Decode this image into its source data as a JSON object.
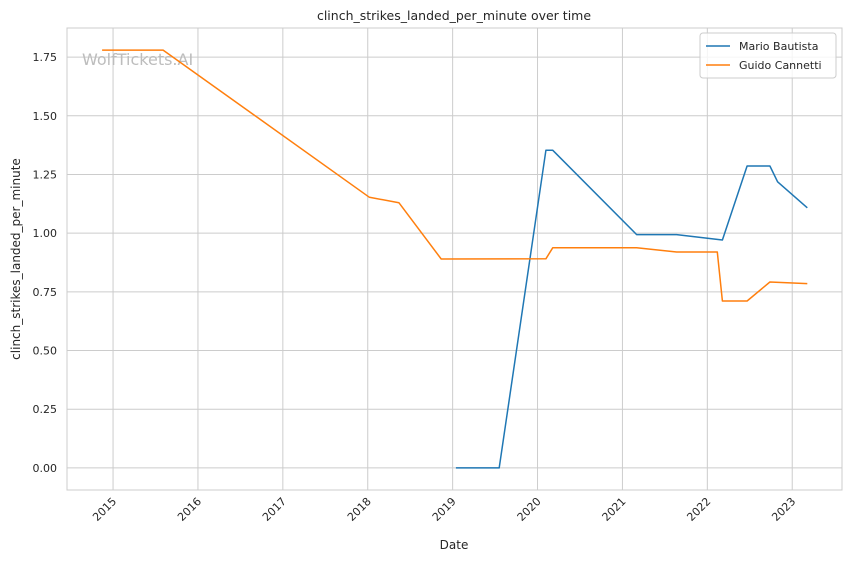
{
  "chart_data": {
    "type": "line",
    "title": "clinch_strikes_landed_per_minute over time",
    "xlabel": "Date",
    "ylabel": "clinch_strikes_landed_per_minute",
    "xlim": [
      "2014-06-17",
      "2023-08-03"
    ],
    "ylim": [
      -0.094,
      1.874
    ],
    "x_ticks": [
      "2015",
      "2016",
      "2017",
      "2018",
      "2019",
      "2020",
      "2021",
      "2022",
      "2023"
    ],
    "y_ticks": [
      "0.00",
      "0.25",
      "0.50",
      "0.75",
      "1.00",
      "1.25",
      "1.50",
      "1.75"
    ],
    "grid": true,
    "legend": "top-right",
    "watermark": "WolfTickets.AI",
    "series": [
      {
        "name": "Mario Bautista",
        "color": "#1f77b4",
        "x": [
          "2019-01-15",
          "2019-07-20",
          "2020-02-06",
          "2020-03-07",
          "2021-03-03",
          "2021-08-22",
          "2022-03-07",
          "2022-06-21",
          "2022-09-27",
          "2022-10-30",
          "2023-03-07"
        ],
        "y": [
          0.0,
          0.0,
          1.353,
          1.353,
          0.994,
          0.994,
          0.971,
          1.286,
          1.286,
          1.219,
          1.108
        ]
      },
      {
        "name": "Guido Cannetti",
        "color": "#ff7f0e",
        "x": [
          "2014-11-15",
          "2015-08-04",
          "2018-01-08",
          "2018-05-15",
          "2018-11-13",
          "2020-02-06",
          "2020-03-07",
          "2021-03-03",
          "2021-08-22",
          "2022-02-13",
          "2022-03-07",
          "2022-06-21",
          "2022-09-27",
          "2023-03-07"
        ],
        "y": [
          1.78,
          1.78,
          1.153,
          1.13,
          0.89,
          0.891,
          0.938,
          0.938,
          0.92,
          0.92,
          0.711,
          0.711,
          0.792,
          0.785
        ]
      }
    ]
  }
}
